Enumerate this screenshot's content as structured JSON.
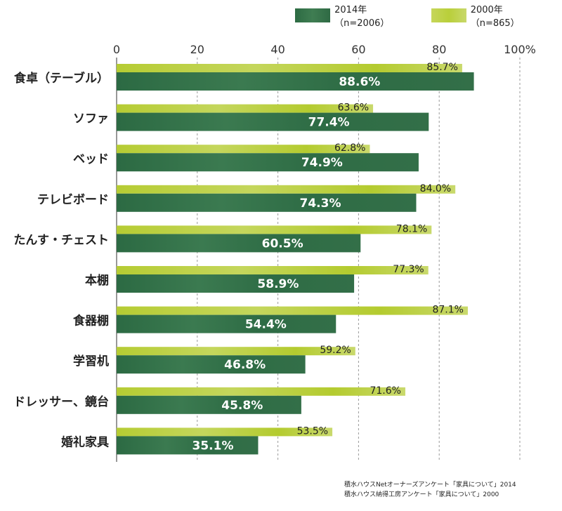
{
  "chart_data": {
    "type": "bar",
    "orientation": "horizontal",
    "categories": [
      "食卓（テーブル）",
      "ソファ",
      "ベッド",
      "テレビボード",
      "たんす・チェスト",
      "本棚",
      "食器棚",
      "学習机",
      "ドレッサー、鏡台",
      "婚礼家具"
    ],
    "series": [
      {
        "name": "2014年（n=2006）",
        "values": [
          88.6,
          77.4,
          74.9,
          74.3,
          60.5,
          58.9,
          54.4,
          46.8,
          45.8,
          35.1
        ],
        "labels": [
          "88.6%",
          "77.4%",
          "74.9%",
          "74.3%",
          "60.5%",
          "58.9%",
          "54.4%",
          "46.8%",
          "45.8%",
          "35.1%"
        ],
        "color": "#2f6b45"
      },
      {
        "name": "2000年（n=865）",
        "values": [
          85.7,
          63.6,
          62.8,
          84.0,
          78.1,
          77.3,
          87.1,
          59.2,
          71.6,
          53.5
        ],
        "labels": [
          "85.7%",
          "63.6%",
          "62.8%",
          "84.0%",
          "78.1%",
          "77.3%",
          "87.1%",
          "59.2%",
          "71.6%",
          "53.5%"
        ],
        "color": "#bccf3e"
      }
    ],
    "xlim": [
      0,
      100
    ],
    "ticks": [
      0,
      20,
      40,
      60,
      80,
      100
    ],
    "tick_labels": [
      "0",
      "20",
      "40",
      "60",
      "80",
      "100%"
    ],
    "grid": true,
    "legend_position": "top-right"
  },
  "source_notes": [
    "積水ハウスNetオーナーズアンケート「家具について」2014",
    "積水ハウス納得工房アンケート「家具について」2000"
  ]
}
